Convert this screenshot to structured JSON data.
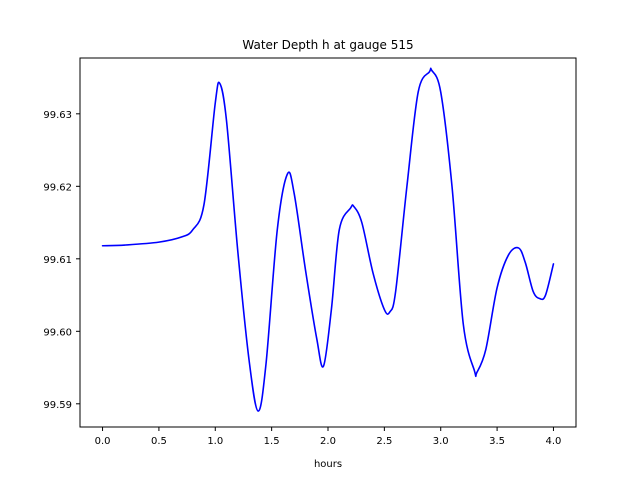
{
  "chart_data": {
    "type": "line",
    "title": "Water Depth h at gauge 515",
    "xlabel": "hours",
    "ylabel": "",
    "xlim": [
      -0.2,
      4.2
    ],
    "ylim": [
      99.5868,
      99.6377
    ],
    "xticks": [
      0.0,
      0.5,
      1.0,
      1.5,
      2.0,
      2.5,
      3.0,
      3.5,
      4.0
    ],
    "xtick_labels": [
      "0.0",
      "0.5",
      "1.0",
      "1.5",
      "2.0",
      "2.5",
      "3.0",
      "3.5",
      "4.0"
    ],
    "yticks": [
      99.59,
      99.6,
      99.61,
      99.62,
      99.63
    ],
    "ytick_labels": [
      "99.59",
      "99.60",
      "99.61",
      "99.62",
      "99.63"
    ],
    "grid": false,
    "series": [
      {
        "color": "#0000ff",
        "x": [
          0.0,
          0.2,
          0.5,
          0.7,
          0.8,
          0.9,
          1.0,
          1.04,
          1.1,
          1.2,
          1.3,
          1.38,
          1.45,
          1.55,
          1.64,
          1.7,
          1.8,
          1.9,
          1.96,
          2.03,
          2.1,
          2.2,
          2.23,
          2.3,
          2.4,
          2.5,
          2.55,
          2.6,
          2.7,
          2.8,
          2.9,
          2.92,
          3.0,
          3.1,
          3.2,
          3.3,
          3.32,
          3.4,
          3.5,
          3.6,
          3.69,
          3.75,
          3.82,
          3.88,
          3.93,
          4.0
        ],
        "y": [
          99.6118,
          99.6119,
          99.6123,
          99.613,
          99.614,
          99.6175,
          99.6315,
          99.6342,
          99.629,
          99.611,
          99.596,
          99.589,
          99.5955,
          99.614,
          99.6217,
          99.619,
          99.6085,
          99.599,
          99.5952,
          99.603,
          99.614,
          99.617,
          99.6172,
          99.615,
          99.608,
          99.603,
          99.6027,
          99.6055,
          99.62,
          99.633,
          99.6358,
          99.636,
          99.633,
          99.62,
          99.601,
          99.5945,
          99.5943,
          99.5975,
          99.606,
          99.6105,
          99.6115,
          99.6095,
          99.6055,
          99.6045,
          99.605,
          99.6093
        ]
      }
    ]
  }
}
